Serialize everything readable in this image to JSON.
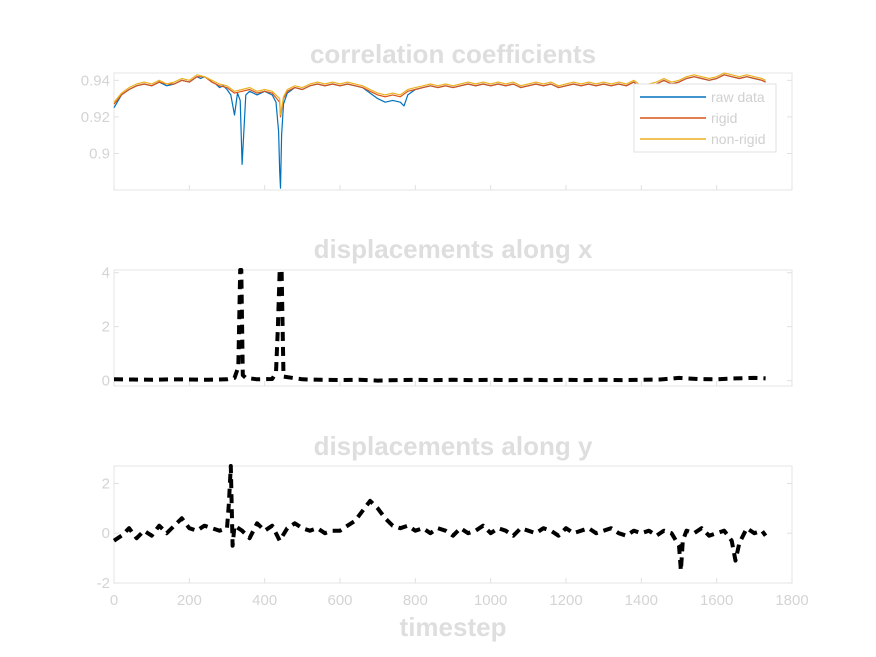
{
  "xlabel": "timestep",
  "chart_data": [
    {
      "type": "line",
      "title": "correlation coefficients",
      "xlim": [
        0,
        1800
      ],
      "ylim": [
        0.88,
        0.944
      ],
      "yticks": [
        0.9,
        0.92,
        0.94
      ],
      "ytick_labels": [
        "0.9",
        "0.92",
        "0.94"
      ],
      "xticks": [
        0,
        200,
        400,
        600,
        800,
        1000,
        1200,
        1400,
        1600,
        1800
      ],
      "legend": {
        "placement": "top-right"
      },
      "series": [
        {
          "name": "raw data",
          "color": "#0072BD",
          "x": [
            0,
            20,
            40,
            60,
            80,
            100,
            120,
            140,
            160,
            180,
            200,
            220,
            230,
            240,
            250,
            260,
            270,
            280,
            290,
            300,
            310,
            320,
            328,
            335,
            340,
            350,
            360,
            380,
            400,
            420,
            430,
            437,
            440,
            442,
            445,
            450,
            460,
            480,
            500,
            520,
            540,
            560,
            580,
            600,
            620,
            640,
            660,
            680,
            700,
            720,
            740,
            760,
            770,
            780,
            800,
            820,
            840,
            860,
            880,
            900,
            920,
            940,
            960,
            980,
            1000,
            1020,
            1040,
            1060,
            1080,
            1100,
            1120,
            1140,
            1160,
            1180,
            1200,
            1220,
            1240,
            1260,
            1280,
            1300,
            1320,
            1340,
            1360,
            1380,
            1400,
            1420,
            1440,
            1460,
            1480,
            1500,
            1520,
            1540,
            1560,
            1580,
            1600,
            1620,
            1640,
            1660,
            1680,
            1700,
            1720,
            1730
          ],
          "y": [
            0.925,
            0.932,
            0.935,
            0.937,
            0.938,
            0.937,
            0.939,
            0.937,
            0.938,
            0.94,
            0.939,
            0.942,
            0.941,
            0.942,
            0.941,
            0.939,
            0.938,
            0.936,
            0.937,
            0.935,
            0.932,
            0.921,
            0.933,
            0.929,
            0.894,
            0.932,
            0.934,
            0.932,
            0.934,
            0.932,
            0.928,
            0.912,
            0.89,
            0.881,
            0.91,
            0.927,
            0.933,
            0.936,
            0.935,
            0.937,
            0.938,
            0.937,
            0.938,
            0.937,
            0.938,
            0.937,
            0.936,
            0.933,
            0.93,
            0.928,
            0.929,
            0.928,
            0.926,
            0.932,
            0.935,
            0.936,
            0.937,
            0.936,
            0.937,
            0.936,
            0.937,
            0.938,
            0.937,
            0.938,
            0.937,
            0.938,
            0.937,
            0.938,
            0.936,
            0.937,
            0.938,
            0.937,
            0.938,
            0.936,
            0.937,
            0.938,
            0.937,
            0.938,
            0.937,
            0.938,
            0.937,
            0.938,
            0.937,
            0.939,
            0.936,
            0.937,
            0.938,
            0.94,
            0.938,
            0.939,
            0.941,
            0.942,
            0.941,
            0.94,
            0.941,
            0.943,
            0.942,
            0.941,
            0.942,
            0.941,
            0.94,
            0.939
          ]
        },
        {
          "name": "rigid",
          "color": "#D95319",
          "x": [
            0,
            20,
            40,
            60,
            80,
            100,
            120,
            140,
            160,
            180,
            200,
            220,
            240,
            260,
            280,
            300,
            320,
            340,
            360,
            380,
            400,
            420,
            440,
            442,
            450,
            460,
            480,
            500,
            520,
            540,
            560,
            580,
            600,
            620,
            640,
            660,
            680,
            700,
            720,
            740,
            760,
            780,
            800,
            820,
            840,
            860,
            880,
            900,
            920,
            940,
            960,
            980,
            1000,
            1020,
            1040,
            1060,
            1080,
            1100,
            1120,
            1140,
            1160,
            1180,
            1200,
            1220,
            1240,
            1260,
            1280,
            1300,
            1320,
            1340,
            1360,
            1380,
            1400,
            1420,
            1440,
            1460,
            1480,
            1500,
            1520,
            1540,
            1560,
            1580,
            1600,
            1620,
            1640,
            1660,
            1680,
            1700,
            1720,
            1730
          ],
          "y": [
            0.927,
            0.932,
            0.935,
            0.937,
            0.938,
            0.937,
            0.939,
            0.938,
            0.938,
            0.94,
            0.939,
            0.942,
            0.942,
            0.939,
            0.937,
            0.936,
            0.933,
            0.934,
            0.935,
            0.933,
            0.934,
            0.933,
            0.928,
            0.92,
            0.93,
            0.934,
            0.936,
            0.935,
            0.937,
            0.938,
            0.937,
            0.938,
            0.937,
            0.938,
            0.937,
            0.936,
            0.934,
            0.932,
            0.931,
            0.932,
            0.931,
            0.934,
            0.935,
            0.936,
            0.937,
            0.936,
            0.937,
            0.936,
            0.937,
            0.938,
            0.937,
            0.938,
            0.937,
            0.938,
            0.937,
            0.938,
            0.936,
            0.937,
            0.938,
            0.937,
            0.938,
            0.936,
            0.937,
            0.938,
            0.937,
            0.938,
            0.937,
            0.938,
            0.937,
            0.938,
            0.937,
            0.939,
            0.936,
            0.937,
            0.938,
            0.94,
            0.938,
            0.939,
            0.941,
            0.942,
            0.941,
            0.94,
            0.941,
            0.943,
            0.942,
            0.941,
            0.942,
            0.941,
            0.94,
            0.939
          ]
        },
        {
          "name": "non-rigid",
          "color": "#EDB120",
          "x": [
            0,
            20,
            40,
            60,
            80,
            100,
            120,
            140,
            160,
            180,
            200,
            220,
            240,
            260,
            280,
            300,
            320,
            340,
            360,
            380,
            400,
            420,
            440,
            442,
            450,
            460,
            480,
            500,
            520,
            540,
            560,
            580,
            600,
            620,
            640,
            660,
            680,
            700,
            720,
            740,
            760,
            780,
            800,
            820,
            840,
            860,
            880,
            900,
            920,
            940,
            960,
            980,
            1000,
            1020,
            1040,
            1060,
            1080,
            1100,
            1120,
            1140,
            1160,
            1180,
            1200,
            1220,
            1240,
            1260,
            1280,
            1300,
            1320,
            1340,
            1360,
            1380,
            1400,
            1420,
            1440,
            1460,
            1480,
            1500,
            1520,
            1540,
            1560,
            1580,
            1600,
            1620,
            1640,
            1660,
            1680,
            1700,
            1720,
            1730
          ],
          "y": [
            0.928,
            0.933,
            0.936,
            0.938,
            0.939,
            0.938,
            0.94,
            0.938,
            0.939,
            0.941,
            0.94,
            0.943,
            0.942,
            0.94,
            0.938,
            0.937,
            0.934,
            0.935,
            0.936,
            0.934,
            0.935,
            0.934,
            0.93,
            0.921,
            0.931,
            0.935,
            0.937,
            0.936,
            0.938,
            0.939,
            0.938,
            0.939,
            0.938,
            0.939,
            0.938,
            0.937,
            0.935,
            0.933,
            0.932,
            0.933,
            0.932,
            0.935,
            0.936,
            0.937,
            0.938,
            0.937,
            0.938,
            0.937,
            0.938,
            0.939,
            0.938,
            0.939,
            0.938,
            0.939,
            0.938,
            0.939,
            0.937,
            0.938,
            0.939,
            0.938,
            0.939,
            0.937,
            0.938,
            0.939,
            0.938,
            0.939,
            0.938,
            0.939,
            0.938,
            0.939,
            0.938,
            0.94,
            0.937,
            0.938,
            0.939,
            0.941,
            0.939,
            0.94,
            0.942,
            0.943,
            0.942,
            0.941,
            0.942,
            0.944,
            0.943,
            0.942,
            0.943,
            0.942,
            0.941,
            0.94
          ]
        }
      ]
    },
    {
      "type": "line",
      "title": "displacements along x",
      "xlim": [
        0,
        1800
      ],
      "ylim": [
        -0.2,
        4.1
      ],
      "yticks": [
        0,
        2,
        4
      ],
      "ytick_labels": [
        "0",
        "2",
        "4"
      ],
      "xticks": [
        0,
        200,
        400,
        600,
        800,
        1000,
        1200,
        1400,
        1600,
        1800
      ],
      "line_style": "dashed",
      "color": "#000000",
      "series": [
        {
          "x": [
            0,
            50,
            100,
            150,
            200,
            250,
            300,
            320,
            330,
            335,
            338,
            342,
            350,
            380,
            420,
            430,
            435,
            440,
            445,
            450,
            500,
            550,
            600,
            650,
            700,
            750,
            800,
            850,
            900,
            950,
            1000,
            1050,
            1100,
            1150,
            1200,
            1250,
            1300,
            1350,
            1400,
            1450,
            1500,
            1550,
            1600,
            1650,
            1700,
            1730
          ],
          "y": [
            0.05,
            0.04,
            0.03,
            0.05,
            0.04,
            0.03,
            0.05,
            0.1,
            0.5,
            4.1,
            4.1,
            0.2,
            0.1,
            0.05,
            0.06,
            0.3,
            2.0,
            4.1,
            4.1,
            0.15,
            0.05,
            0.03,
            0.02,
            0.03,
            0.0,
            0.02,
            0.03,
            0.02,
            0.03,
            0.02,
            0.03,
            0.02,
            0.03,
            0.02,
            0.03,
            0.02,
            0.03,
            0.02,
            0.03,
            0.04,
            0.1,
            0.06,
            0.05,
            0.08,
            0.1,
            0.08
          ]
        }
      ]
    },
    {
      "type": "line",
      "title": "displacements along y",
      "xlim": [
        0,
        1800
      ],
      "ylim": [
        -2,
        2.7
      ],
      "yticks": [
        -2,
        0,
        2
      ],
      "ytick_labels": [
        "-2",
        "0",
        "2"
      ],
      "xticks": [
        0,
        200,
        400,
        600,
        800,
        1000,
        1200,
        1400,
        1600,
        1800
      ],
      "xtick_labels": [
        "0",
        "200",
        "400",
        "600",
        "800",
        "1000",
        "1200",
        "1400",
        "1600",
        "1800"
      ],
      "line_style": "dashed",
      "color": "#000000",
      "series": [
        {
          "x": [
            0,
            20,
            40,
            60,
            80,
            100,
            120,
            140,
            160,
            180,
            200,
            220,
            240,
            260,
            280,
            300,
            305,
            310,
            315,
            320,
            340,
            360,
            380,
            400,
            420,
            440,
            460,
            480,
            500,
            520,
            540,
            560,
            580,
            600,
            620,
            640,
            660,
            680,
            700,
            720,
            740,
            760,
            780,
            800,
            820,
            840,
            860,
            880,
            900,
            920,
            940,
            960,
            980,
            1000,
            1020,
            1040,
            1060,
            1080,
            1100,
            1120,
            1140,
            1160,
            1180,
            1200,
            1220,
            1240,
            1260,
            1280,
            1300,
            1320,
            1340,
            1360,
            1380,
            1400,
            1420,
            1440,
            1460,
            1480,
            1500,
            1505,
            1510,
            1520,
            1540,
            1560,
            1580,
            1600,
            1620,
            1640,
            1650,
            1660,
            1680,
            1700,
            1720,
            1730
          ],
          "y": [
            -0.3,
            -0.1,
            0.2,
            -0.2,
            0.1,
            -0.1,
            0.3,
            0.0,
            0.3,
            0.6,
            0.2,
            0.1,
            0.3,
            0.2,
            0.1,
            0.2,
            1.2,
            2.7,
            -0.5,
            0.3,
            0.1,
            -0.2,
            0.4,
            0.1,
            0.3,
            -0.3,
            0.2,
            0.4,
            0.2,
            0.1,
            0.2,
            0.0,
            0.1,
            0.1,
            0.3,
            0.5,
            0.9,
            1.3,
            1.0,
            0.6,
            0.3,
            0.2,
            0.3,
            0.1,
            0.2,
            0.0,
            0.2,
            0.1,
            -0.1,
            0.2,
            0.0,
            0.1,
            0.3,
            0.0,
            0.2,
            0.1,
            -0.1,
            0.2,
            0.1,
            0.0,
            0.2,
            0.1,
            -0.1,
            0.2,
            0.0,
            0.1,
            0.2,
            0.0,
            0.1,
            0.2,
            0.0,
            -0.1,
            0.1,
            0.0,
            0.1,
            -0.1,
            0.1,
            0.0,
            -0.5,
            -1.5,
            -0.3,
            0.1,
            0.0,
            0.2,
            -0.1,
            0.0,
            0.1,
            -0.3,
            -1.1,
            -0.4,
            0.2,
            0.0,
            0.1,
            -0.1
          ]
        }
      ]
    }
  ],
  "legend_labels": [
    "raw data",
    "rigid",
    "non-rigid"
  ]
}
